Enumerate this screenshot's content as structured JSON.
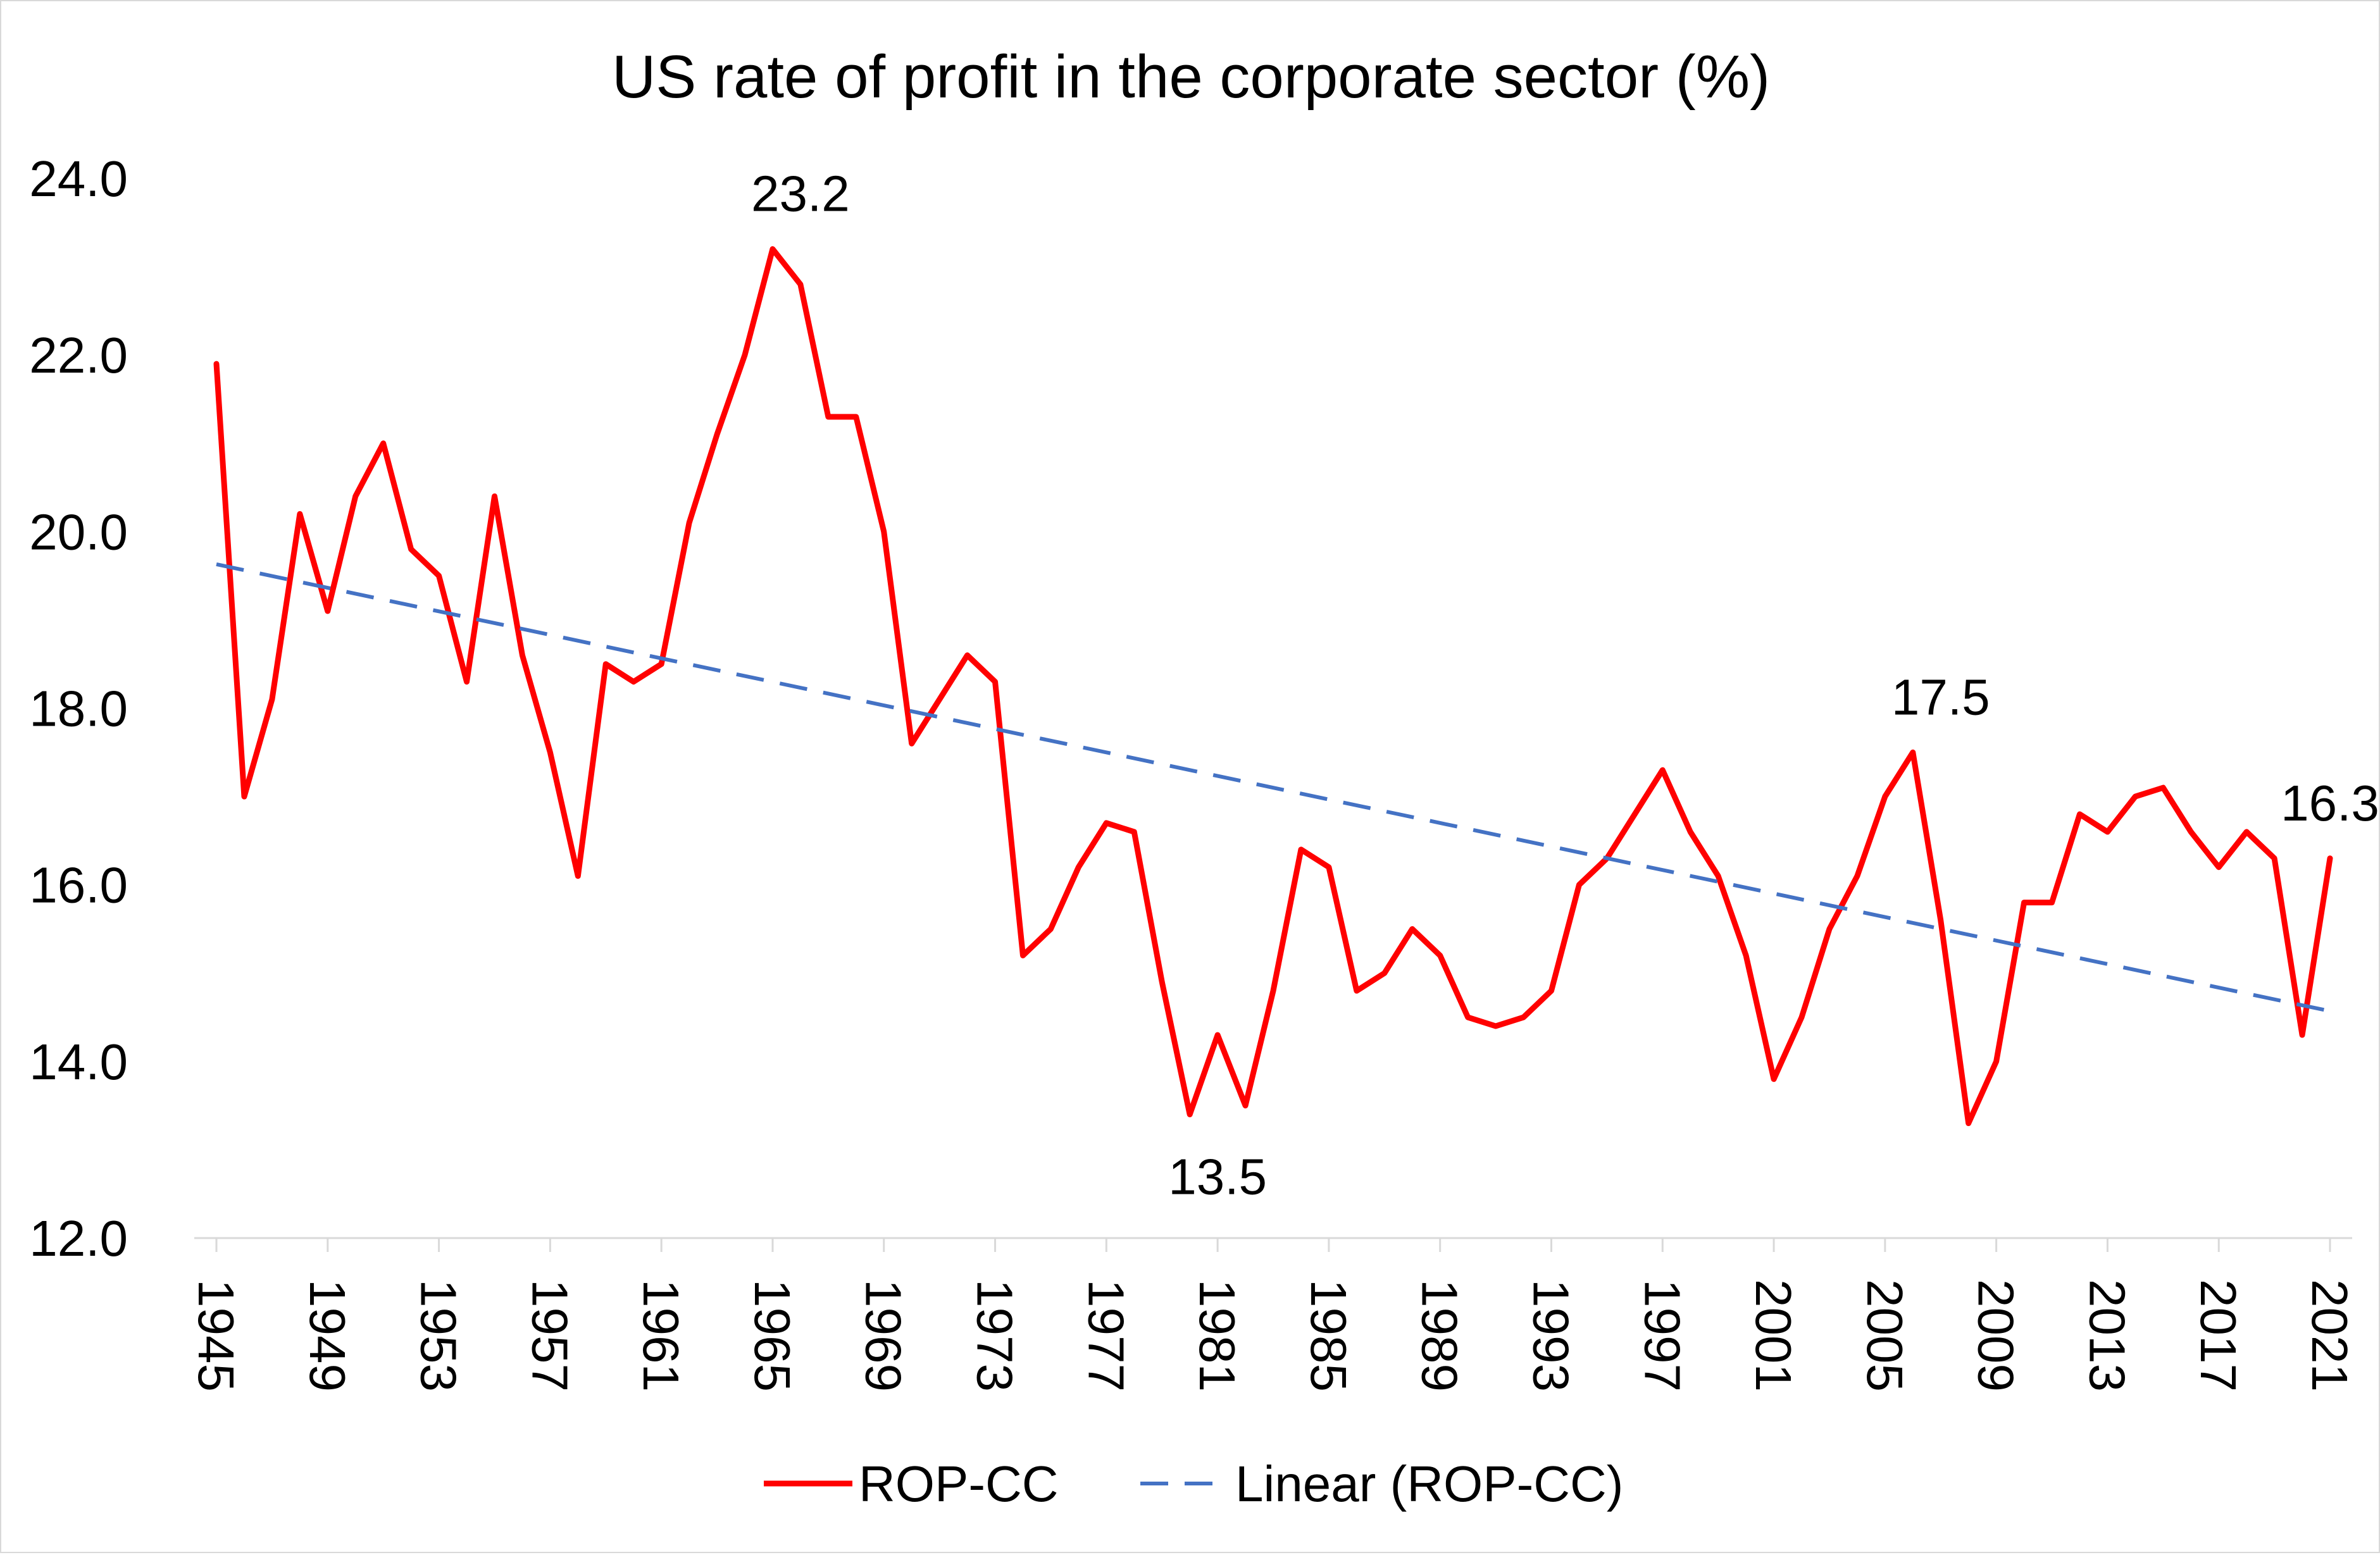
{
  "chart_data": {
    "type": "line",
    "title": "US rate of profit in the corporate sector (%)",
    "xlabel": "",
    "ylabel": "",
    "ylim": [
      12.0,
      24.0
    ],
    "yticks": [
      "12.0",
      "14.0",
      "16.0",
      "18.0",
      "20.0",
      "22.0",
      "24.0"
    ],
    "xlim": [
      1945,
      2021
    ],
    "xticks": [
      "1945",
      "1949",
      "1953",
      "1957",
      "1961",
      "1965",
      "1969",
      "1973",
      "1977",
      "1981",
      "1985",
      "1989",
      "1993",
      "1997",
      "2001",
      "2005",
      "2009",
      "2013",
      "2017",
      "2021"
    ],
    "grid": false,
    "legend_position": "bottom",
    "x": [
      1945,
      1946,
      1947,
      1948,
      1949,
      1950,
      1951,
      1952,
      1953,
      1954,
      1955,
      1956,
      1957,
      1958,
      1959,
      1960,
      1961,
      1962,
      1963,
      1964,
      1965,
      1966,
      1967,
      1968,
      1969,
      1970,
      1971,
      1972,
      1973,
      1974,
      1975,
      1976,
      1977,
      1978,
      1979,
      1980,
      1981,
      1982,
      1983,
      1984,
      1985,
      1986,
      1987,
      1988,
      1989,
      1990,
      1991,
      1992,
      1993,
      1994,
      1995,
      1996,
      1997,
      1998,
      1999,
      2000,
      2001,
      2002,
      2003,
      2004,
      2005,
      2006,
      2007,
      2008,
      2009,
      2010,
      2011,
      2012,
      2013,
      2014,
      2015,
      2016,
      2017,
      2018,
      2019,
      2020,
      2021
    ],
    "series": [
      {
        "name": "ROP-CC",
        "color": "#ff0000",
        "style": "solid",
        "values": [
          21.9,
          17.0,
          18.1,
          20.2,
          19.1,
          20.4,
          21.0,
          19.8,
          19.5,
          18.3,
          20.4,
          18.6,
          17.5,
          16.1,
          18.5,
          18.3,
          18.5,
          20.1,
          21.1,
          22.0,
          23.2,
          22.8,
          21.3,
          21.3,
          20.0,
          17.6,
          18.1,
          18.6,
          18.3,
          15.2,
          15.5,
          16.2,
          16.7,
          16.6,
          14.9,
          13.4,
          14.3,
          13.5,
          14.8,
          16.4,
          16.2,
          14.8,
          15.0,
          15.5,
          15.2,
          14.5,
          14.4,
          14.5,
          14.8,
          16.0,
          16.3,
          16.8,
          17.3,
          16.6,
          16.1,
          15.2,
          13.8,
          14.5,
          15.5,
          16.1,
          17.0,
          17.5,
          15.6,
          13.3,
          14.0,
          15.8,
          15.8,
          16.8,
          16.6,
          17.0,
          17.1,
          16.6,
          16.2,
          16.6,
          16.3,
          14.3,
          16.3
        ]
      },
      {
        "name": "Linear (ROP-CC)",
        "color": "#4472c4",
        "style": "dashed",
        "trend": {
          "start": 19.63,
          "end": 14.57
        }
      }
    ],
    "annotations": [
      {
        "x": 1966,
        "y": 23.2,
        "text": "23.2",
        "pos": "above"
      },
      {
        "x": 1981,
        "y": 13.5,
        "text": "13.5",
        "pos": "below"
      },
      {
        "x": 2007,
        "y": 17.5,
        "text": "17.5",
        "pos": "above"
      },
      {
        "x": 2021,
        "y": 16.3,
        "text": "16.3",
        "pos": "above"
      }
    ]
  }
}
